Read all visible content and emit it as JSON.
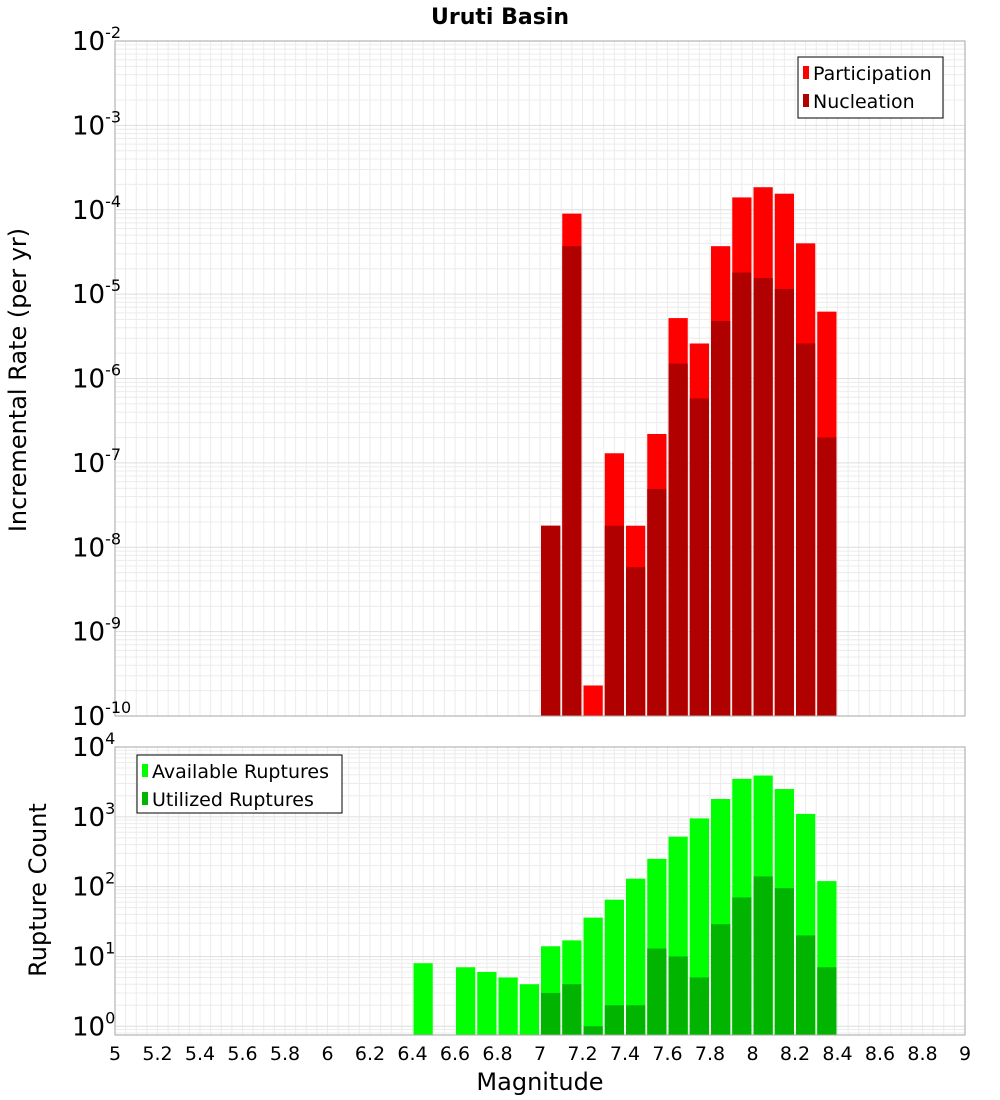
{
  "chart_data": [
    {
      "type": "bar",
      "title": "Uruti Basin",
      "ylabel": "Incremental Rate (per yr)",
      "xlabel": "",
      "xlim": [
        5,
        9
      ],
      "ylim": [
        1e-10,
        0.01
      ],
      "yscale": "log",
      "y_ticks": [
        "10^-10",
        "10^-9",
        "10^-8",
        "10^-7",
        "10^-6",
        "10^-5",
        "10^-4",
        "10^-3",
        "10^-2"
      ],
      "legend_position": "top-right",
      "bin_width": 0.1,
      "series": [
        {
          "name": "Participation",
          "color": "#ff0000",
          "x": [
            7.0,
            7.1,
            7.2,
            7.3,
            7.4,
            7.5,
            7.6,
            7.7,
            7.8,
            7.9,
            8.0,
            8.1,
            8.2,
            8.3
          ],
          "values": [
            1.8e-08,
            9e-05,
            2.3e-10,
            1.3e-07,
            1.8e-08,
            2.2e-07,
            5.2e-06,
            2.6e-06,
            3.7e-05,
            0.00014,
            0.000185,
            0.000155,
            4e-05,
            6.2e-06
          ]
        },
        {
          "name": "Nucleation",
          "color": "#b00000",
          "x": [
            7.0,
            7.1,
            7.2,
            7.3,
            7.4,
            7.5,
            7.6,
            7.7,
            7.8,
            7.9,
            8.0,
            8.1,
            8.2,
            8.3
          ],
          "values": [
            1.8e-08,
            3.7e-05,
            null,
            1.8e-08,
            5.8e-09,
            4.9e-08,
            1.5e-06,
            5.8e-07,
            4.8e-06,
            1.8e-05,
            1.55e-05,
            1.15e-05,
            2.6e-06,
            2e-07
          ]
        }
      ]
    },
    {
      "type": "bar",
      "title": "",
      "ylabel": "Rupture Count",
      "xlabel": "Magnitude",
      "xlim": [
        5,
        9
      ],
      "ylim": [
        0.75,
        10000.0
      ],
      "yscale": "log",
      "y_ticks": [
        "10^0",
        "10^1",
        "10^2",
        "10^3",
        "10^4"
      ],
      "x_ticks": [
        "5",
        "5.2",
        "5.4",
        "5.6",
        "5.8",
        "6",
        "6.2",
        "6.4",
        "6.6",
        "6.8",
        "7",
        "7.2",
        "7.4",
        "7.6",
        "7.8",
        "8",
        "8.2",
        "8.4",
        "8.6",
        "8.8",
        "9"
      ],
      "legend_position": "top-left",
      "bin_width": 0.1,
      "series": [
        {
          "name": "Available Ruptures",
          "color": "#00ff00",
          "x": [
            6.4,
            6.6,
            6.7,
            6.8,
            6.9,
            7.0,
            7.1,
            7.2,
            7.3,
            7.4,
            7.5,
            7.6,
            7.7,
            7.8,
            7.9,
            8.0,
            8.1,
            8.2,
            8.3
          ],
          "values": [
            8,
            7,
            6,
            5,
            4,
            14,
            17,
            36,
            65,
            130,
            250,
            520,
            950,
            1800,
            3500,
            3900,
            2500,
            1100,
            120
          ]
        },
        {
          "name": "Utilized Ruptures",
          "color": "#00b400",
          "x": [
            7.0,
            7.1,
            7.2,
            7.3,
            7.4,
            7.5,
            7.6,
            7.7,
            7.8,
            7.9,
            8.0,
            8.1,
            8.2,
            8.3
          ],
          "values": [
            3,
            4,
            1,
            2,
            2,
            13,
            10,
            5,
            29,
            70,
            140,
            95,
            20,
            7
          ]
        }
      ]
    }
  ]
}
